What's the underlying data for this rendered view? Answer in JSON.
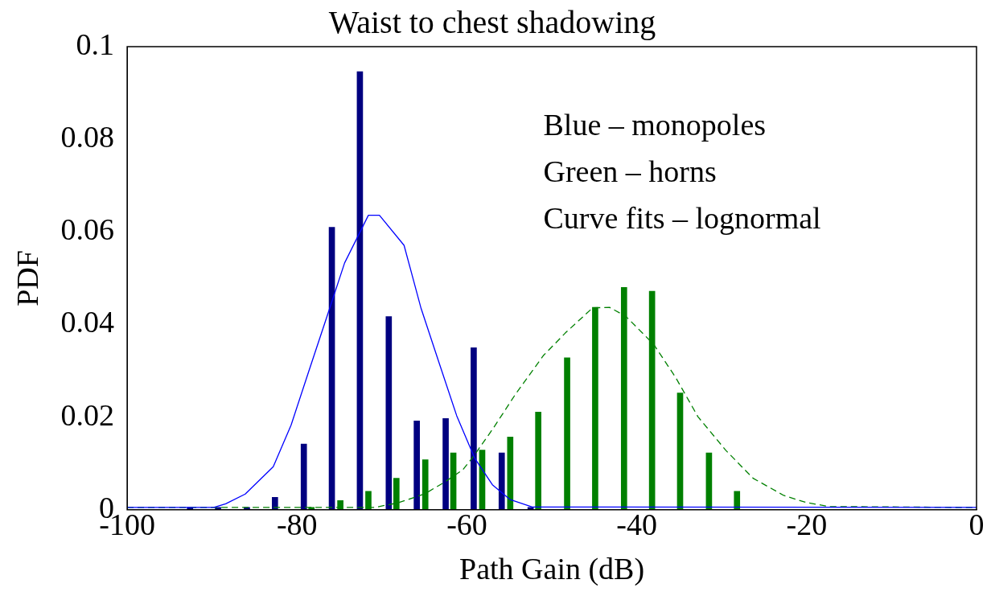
{
  "chart_data": {
    "type": "bar",
    "title": "Waist to chest shadowing",
    "xlabel": "Path Gain (dB)",
    "ylabel": "PDF",
    "annotations": [
      "Blue – monopoles",
      "Green – horns",
      "Curve fits – lognormal"
    ],
    "xlim": [
      -100,
      0
    ],
    "xticks": [
      -100,
      -80,
      -60,
      -40,
      -20,
      0
    ],
    "ylim": [
      0,
      0.1
    ],
    "yticks": [
      0,
      0.02,
      0.04,
      0.06,
      0.08,
      0.1
    ],
    "grid": false,
    "legend": false,
    "marker": "none",
    "series": [
      {
        "color": "#000080",
        "x": [
          -92.6,
          -89.3,
          -85.9,
          -82.6,
          -79.2,
          -75.9,
          -72.6,
          -69.2,
          -65.9,
          -62.5,
          -59.2,
          -55.9,
          -52.5
        ],
        "values": [
          0.0005,
          0.0005,
          0.0005,
          0.0027,
          0.0142,
          0.061,
          0.0946,
          0.0417,
          0.0192,
          0.0197,
          0.035,
          0.0123,
          0.0005
        ]
      },
      {
        "color": "#008000",
        "x": [
          -78.3,
          -74.9,
          -71.6,
          -68.3,
          -64.9,
          -61.6,
          -58.2,
          -54.9,
          -51.6,
          -48.2,
          -44.9,
          -41.5,
          -38.2,
          -34.9,
          -31.5,
          -28.2
        ],
        "values": [
          0.0005,
          0.002,
          0.004,
          0.0068,
          0.0108,
          0.0123,
          0.0129,
          0.0157,
          0.0211,
          0.0328,
          0.0437,
          0.048,
          0.0472,
          0.0252,
          0.0123,
          0.004
        ]
      },
      {
        "type": "line",
        "color": "#0000ff",
        "line_style": "solid",
        "x": [
          -100,
          -89.8,
          -88.4,
          -86.1,
          -82.8,
          -80.7,
          -78.6,
          -76.5,
          -74.4,
          -71.6,
          -70.3,
          -67.4,
          -65.4,
          -63.2,
          -61.2,
          -59.1,
          -57,
          -54.9,
          -52.3,
          0
        ],
        "values": [
          0.0005,
          0.0005,
          0.0013,
          0.0034,
          0.0093,
          0.0183,
          0.03,
          0.0416,
          0.0533,
          0.0636,
          0.0636,
          0.0571,
          0.0435,
          0.0313,
          0.0203,
          0.0112,
          0.0054,
          0.0022,
          0.0006,
          0.0005
        ]
      },
      {
        "type": "line",
        "color": "#008000",
        "line_style": "dashed",
        "x": [
          -100,
          -70.9,
          -68.1,
          -65,
          -62.6,
          -60.5,
          -59.2,
          -56.9,
          -54.3,
          -51,
          -48.4,
          -45.2,
          -43.2,
          -41.3,
          -38,
          -35.4,
          -32.8,
          -29.5,
          -26.3,
          -22.7,
          -20.1,
          -17.4,
          0
        ],
        "values": [
          0.0005,
          0.0005,
          0.0015,
          0.0034,
          0.006,
          0.0086,
          0.0116,
          0.0176,
          0.0249,
          0.0333,
          0.0382,
          0.0436,
          0.0437,
          0.0418,
          0.0357,
          0.0285,
          0.0201,
          0.0128,
          0.0068,
          0.0031,
          0.0016,
          0.0007,
          0.0005
        ]
      }
    ]
  }
}
